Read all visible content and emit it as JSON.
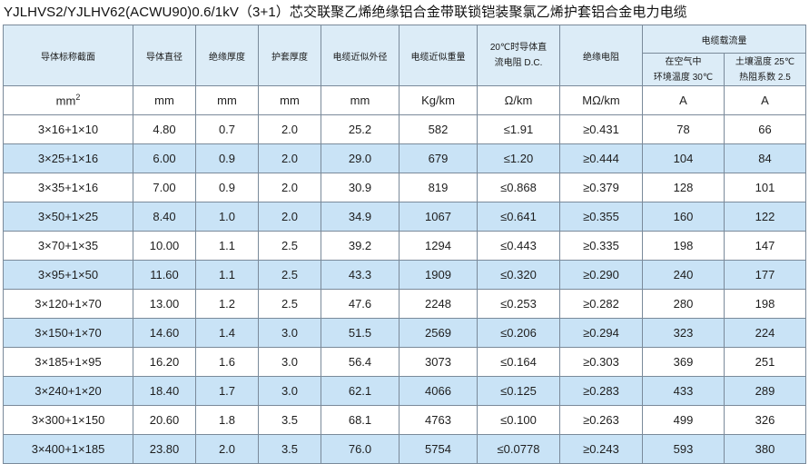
{
  "title": "YJLHVS2/YJLHV62(ACWU90)0.6/1kV（3+1）芯交联聚乙烯绝缘铝合金带联锁铠装聚氯乙烯护套铝合金电力电缆",
  "headers": {
    "section": "导体标称截面",
    "diameter": "导体直径",
    "insulation": "绝缘厚度",
    "sheath": "护套厚度",
    "outer_diameter": "电缆近似外径",
    "weight": "电缆近似重量",
    "dc_resistance_line1": "20℃时导体直",
    "dc_resistance_line2": "流电阻 D.C.",
    "insulation_resistance": "绝缘电阻",
    "ampacity": "电缆载流量",
    "air_line1": "在空气中",
    "air_line2": "环境温度 30℃",
    "soil_line1": "土壤温度 25℃",
    "soil_line2": "热阻系数 2.5"
  },
  "units": {
    "section": "mm",
    "section_sup": "2",
    "diameter": "mm",
    "insulation": "mm",
    "sheath": "mm",
    "outer_diameter": "mm",
    "weight": "Kg/km",
    "dc_resistance": "Ω/km",
    "insulation_resistance": "MΩ/km",
    "air": "A",
    "soil": "A"
  },
  "rows": [
    [
      "3×16+1×10",
      "4.80",
      "0.7",
      "2.0",
      "25.2",
      "582",
      "≤1.91",
      "≥0.431",
      "78",
      "66"
    ],
    [
      "3×25+1×16",
      "6.00",
      "0.9",
      "2.0",
      "29.0",
      "679",
      "≤1.20",
      "≥0.444",
      "104",
      "84"
    ],
    [
      "3×35+1×16",
      "7.00",
      "0.9",
      "2.0",
      "30.9",
      "819",
      "≤0.868",
      "≥0.379",
      "128",
      "101"
    ],
    [
      "3×50+1×25",
      "8.40",
      "1.0",
      "2.0",
      "34.9",
      "1067",
      "≤0.641",
      "≥0.355",
      "160",
      "122"
    ],
    [
      "3×70+1×35",
      "10.00",
      "1.1",
      "2.5",
      "39.2",
      "1294",
      "≤0.443",
      "≥0.335",
      "198",
      "147"
    ],
    [
      "3×95+1×50",
      "11.60",
      "1.1",
      "2.5",
      "43.3",
      "1909",
      "≤0.320",
      "≥0.290",
      "240",
      "177"
    ],
    [
      "3×120+1×70",
      "13.00",
      "1.2",
      "2.5",
      "47.6",
      "2248",
      "≤0.253",
      "≥0.282",
      "280",
      "198"
    ],
    [
      "3×150+1×70",
      "14.60",
      "1.4",
      "3.0",
      "51.5",
      "2569",
      "≤0.206",
      "≥0.294",
      "323",
      "224"
    ],
    [
      "3×185+1×95",
      "16.20",
      "1.6",
      "3.0",
      "56.4",
      "3073",
      "≤0.164",
      "≥0.303",
      "369",
      "251"
    ],
    [
      "3×240+1×20",
      "18.40",
      "1.7",
      "3.0",
      "62.1",
      "4066",
      "≤0.125",
      "≥0.283",
      "433",
      "289"
    ],
    [
      "3×300+1×150",
      "20.60",
      "1.8",
      "3.5",
      "68.1",
      "4763",
      "≤0.100",
      "≥0.263",
      "499",
      "326"
    ],
    [
      "3×400+1×185",
      "23.80",
      "2.0",
      "3.5",
      "76.0",
      "5754",
      "≤0.0778",
      "≥0.243",
      "593",
      "380"
    ]
  ]
}
